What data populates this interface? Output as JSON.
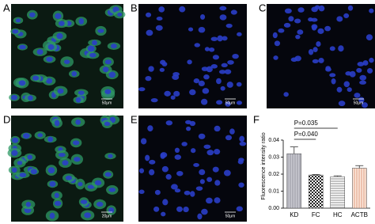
{
  "panels": [
    {
      "label": "A",
      "scale": "50μm"
    },
    {
      "label": "B",
      "scale": "50μm"
    },
    {
      "label": "C",
      "scale": "50μm"
    },
    {
      "label": "D",
      "scale": "20μm"
    },
    {
      "label": "E",
      "scale": "50μm"
    }
  ],
  "chart_data": {
    "type": "bar",
    "label": "F",
    "y_label": "Fluorescence intensity ratio",
    "categories": [
      "KD",
      "FC",
      "HC",
      "ACTB"
    ],
    "values": [
      0.032,
      0.0195,
      0.0185,
      0.0235
    ],
    "errors": [
      0.004,
      0.0003,
      0.0005,
      0.0015
    ],
    "ylim": [
      0,
      0.04
    ],
    "yticks": [
      {
        "value": 0,
        "label": "0.00"
      },
      {
        "value": 0.01,
        "label": "0.01"
      },
      {
        "value": 0.02,
        "label": "0.02"
      },
      {
        "value": 0.03,
        "label": "0.03"
      },
      {
        "value": 0.04,
        "label": "0.04"
      }
    ],
    "annotations": [
      "P=0.035",
      "P=0.040"
    ]
  }
}
